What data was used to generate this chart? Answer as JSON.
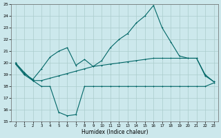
{
  "xlabel": "Humidex (Indice chaleur)",
  "bg_color": "#cce8ec",
  "grid_color": "#aacccc",
  "line_color": "#006666",
  "xlim": [
    -0.5,
    23.5
  ],
  "ylim": [
    15,
    25
  ],
  "xticks": [
    0,
    1,
    2,
    3,
    4,
    5,
    6,
    7,
    8,
    9,
    10,
    11,
    12,
    13,
    14,
    15,
    16,
    17,
    18,
    19,
    20,
    21,
    22,
    23
  ],
  "yticks": [
    15,
    16,
    17,
    18,
    19,
    20,
    21,
    22,
    23,
    24,
    25
  ],
  "series_top_x": [
    0,
    1,
    2,
    3,
    4,
    5,
    6,
    7,
    8,
    9,
    10,
    11,
    12,
    13,
    14,
    15,
    16,
    17,
    18,
    19,
    20,
    21,
    22,
    23
  ],
  "series_top_y": [
    20.0,
    19.1,
    18.6,
    19.5,
    20.5,
    21.0,
    21.3,
    19.8,
    20.3,
    19.7,
    20.2,
    21.3,
    22.0,
    22.5,
    23.4,
    24.0,
    24.9,
    23.0,
    21.8,
    20.6,
    20.4,
    20.4,
    19.0,
    18.4
  ],
  "series_mid_x": [
    0,
    1,
    2,
    3,
    4,
    5,
    6,
    7,
    8,
    9,
    10,
    11,
    12,
    13,
    14,
    15,
    16,
    17,
    18,
    19,
    20,
    21,
    22,
    23
  ],
  "series_mid_y": [
    20.0,
    19.2,
    18.5,
    18.5,
    18.7,
    18.9,
    19.1,
    19.3,
    19.5,
    19.7,
    19.8,
    19.9,
    20.0,
    20.1,
    20.2,
    20.3,
    20.4,
    20.4,
    20.4,
    20.4,
    20.4,
    20.4,
    18.9,
    18.4
  ],
  "series_bot_x": [
    0,
    1,
    2,
    3,
    4,
    5,
    6,
    7,
    8,
    9,
    10,
    11,
    12,
    13,
    14,
    15,
    16,
    17,
    18,
    19,
    20,
    21,
    22,
    23
  ],
  "series_bot_y": [
    19.9,
    19.0,
    18.5,
    18.0,
    18.0,
    15.8,
    15.5,
    15.6,
    18.0,
    18.0,
    18.0,
    18.0,
    18.0,
    18.0,
    18.0,
    18.0,
    18.0,
    18.0,
    18.0,
    18.0,
    18.0,
    18.0,
    18.0,
    18.3
  ]
}
